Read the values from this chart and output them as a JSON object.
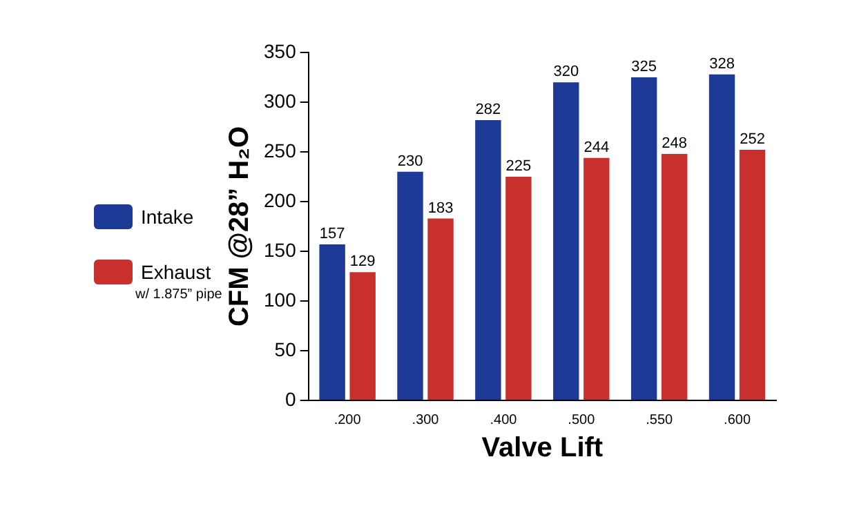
{
  "chart_data": {
    "type": "bar",
    "xlabel": "Valve Lift",
    "ylabel": "CFM @28” H₂O",
    "categories": [
      ".200",
      ".300",
      ".400",
      ".500",
      ".550",
      ".600"
    ],
    "series": [
      {
        "name": "Intake",
        "color": "#1c3a96",
        "values": [
          157,
          230,
          282,
          320,
          325,
          328
        ]
      },
      {
        "name": "Exhaust",
        "color": "#c8302e",
        "values": [
          129,
          183,
          225,
          244,
          248,
          252
        ]
      }
    ],
    "annotations": [
      "w/ 1.875” pipe"
    ],
    "ylim": [
      0,
      350
    ],
    "yticks": [
      0,
      50,
      100,
      150,
      200,
      250,
      300,
      350
    ],
    "grid": false,
    "legend": "left",
    "data_labels": true
  }
}
